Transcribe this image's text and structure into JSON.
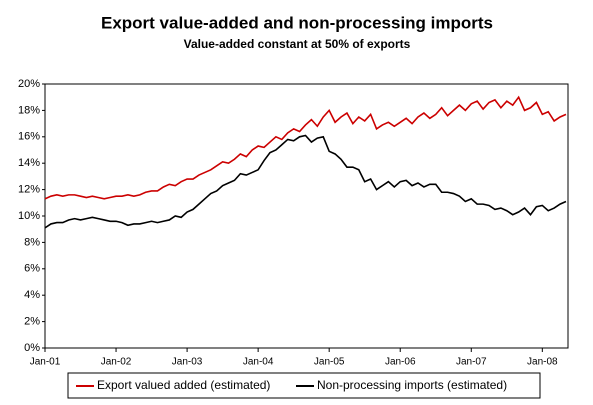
{
  "chart_data": {
    "type": "line",
    "title": "Export value-added and non-processing imports",
    "subtitle": "Value-added constant at 50% of exports",
    "categories": [
      "Jan-01",
      null,
      null,
      null,
      null,
      null,
      null,
      null,
      null,
      null,
      null,
      null,
      "Jan-02",
      null,
      null,
      null,
      null,
      null,
      null,
      null,
      null,
      null,
      null,
      null,
      "Jan-03",
      null,
      null,
      null,
      null,
      null,
      null,
      null,
      null,
      null,
      null,
      null,
      "Jan-04",
      null,
      null,
      null,
      null,
      null,
      null,
      null,
      null,
      null,
      null,
      null,
      "Jan-05",
      null,
      null,
      null,
      null,
      null,
      null,
      null,
      null,
      null,
      null,
      null,
      "Jan-06",
      null,
      null,
      null,
      null,
      null,
      null,
      null,
      null,
      null,
      null,
      null,
      "Jan-07",
      null,
      null,
      null,
      null,
      null,
      null,
      null,
      null,
      null,
      null,
      null,
      "Jan-08",
      null,
      null,
      null,
      null
    ],
    "series": [
      {
        "name": "Export valued added (estimated)",
        "color": "#cc0000",
        "values": [
          11.3,
          11.5,
          11.6,
          11.5,
          11.6,
          11.6,
          11.5,
          11.4,
          11.5,
          11.4,
          11.3,
          11.4,
          11.5,
          11.5,
          11.6,
          11.5,
          11.6,
          11.8,
          11.9,
          11.9,
          12.2,
          12.4,
          12.3,
          12.6,
          12.8,
          12.8,
          13.1,
          13.3,
          13.5,
          13.8,
          14.1,
          14.0,
          14.3,
          14.7,
          14.5,
          15.0,
          15.3,
          15.2,
          15.6,
          16.0,
          15.8,
          16.3,
          16.6,
          16.4,
          16.9,
          17.3,
          16.8,
          17.5,
          18.0,
          17.1,
          17.5,
          17.8,
          17.0,
          17.5,
          17.2,
          17.7,
          16.6,
          16.9,
          17.1,
          16.8,
          17.1,
          17.4,
          17.0,
          17.5,
          17.8,
          17.4,
          17.7,
          18.2,
          17.6,
          18.0,
          18.4,
          18.0,
          18.5,
          18.7,
          18.1,
          18.6,
          18.8,
          18.2,
          18.7,
          18.4,
          19.0,
          18.0,
          18.2,
          18.6,
          17.7,
          17.9,
          17.2,
          17.5,
          17.7
        ]
      },
      {
        "name": "Non-processing imports (estimated)",
        "color": "#000000",
        "values": [
          9.1,
          9.4,
          9.5,
          9.5,
          9.7,
          9.8,
          9.7,
          9.8,
          9.9,
          9.8,
          9.7,
          9.6,
          9.6,
          9.5,
          9.3,
          9.4,
          9.4,
          9.5,
          9.6,
          9.5,
          9.6,
          9.7,
          10.0,
          9.9,
          10.3,
          10.5,
          10.9,
          11.3,
          11.7,
          11.9,
          12.3,
          12.5,
          12.7,
          13.2,
          13.1,
          13.3,
          13.5,
          14.2,
          14.8,
          15.0,
          15.4,
          15.8,
          15.7,
          16.0,
          16.1,
          15.6,
          15.9,
          16.0,
          14.9,
          14.7,
          14.3,
          13.7,
          13.7,
          13.5,
          12.6,
          12.8,
          12.0,
          12.3,
          12.6,
          12.2,
          12.6,
          12.7,
          12.3,
          12.5,
          12.2,
          12.4,
          12.4,
          11.8,
          11.8,
          11.7,
          11.5,
          11.1,
          11.3,
          10.9,
          10.9,
          10.8,
          10.5,
          10.6,
          10.4,
          10.1,
          10.3,
          10.6,
          10.1,
          10.7,
          10.8,
          10.4,
          10.6,
          10.9,
          11.1
        ]
      }
    ],
    "ylim": [
      0,
      20
    ],
    "yticks": [
      {
        "value": 0,
        "label": "0%"
      },
      {
        "value": 2,
        "label": "2%"
      },
      {
        "value": 4,
        "label": "4%"
      },
      {
        "value": 6,
        "label": "6%"
      },
      {
        "value": 8,
        "label": "8%"
      },
      {
        "value": 10,
        "label": "10%"
      },
      {
        "value": 12,
        "label": "12%"
      },
      {
        "value": 14,
        "label": "14%"
      },
      {
        "value": 16,
        "label": "16%"
      },
      {
        "value": 18,
        "label": "18%"
      },
      {
        "value": 20,
        "label": "20%"
      }
    ],
    "grid": false,
    "legend": "bottom"
  }
}
